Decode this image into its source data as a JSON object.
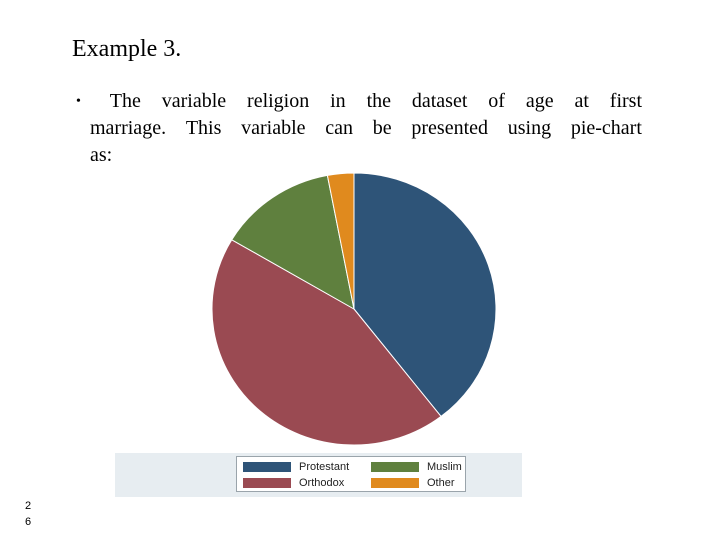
{
  "slide": {
    "title": "Example 3.",
    "bullet_marker": "•",
    "bullet_lines": [
      [
        "The",
        "variable",
        "religion",
        "in",
        "the",
        "dataset",
        "of",
        "age",
        "at",
        "first"
      ],
      [
        "marriage.",
        "This",
        "variable",
        "can",
        "be",
        "presented",
        "using",
        "pie-chart"
      ],
      [
        "as:"
      ]
    ],
    "page_number_digits": [
      "2",
      "6"
    ]
  },
  "chart_data": {
    "type": "pie",
    "title": "",
    "start_angle_deg": 0,
    "direction": "clockwise",
    "slices": [
      {
        "label": "Protestant",
        "value": 39.5,
        "color": "#2e5478"
      },
      {
        "label": "Orthodox",
        "value": 44.0,
        "color": "#9a4a52"
      },
      {
        "label": "Muslim",
        "value": 13.5,
        "color": "#5f803e"
      },
      {
        "label": "Other",
        "value": 3.0,
        "color": "#e08a1e"
      }
    ],
    "legend": {
      "placement": "bottom",
      "columns": 2,
      "order": [
        "Protestant",
        "Muslim",
        "Orthodox",
        "Other"
      ]
    }
  }
}
